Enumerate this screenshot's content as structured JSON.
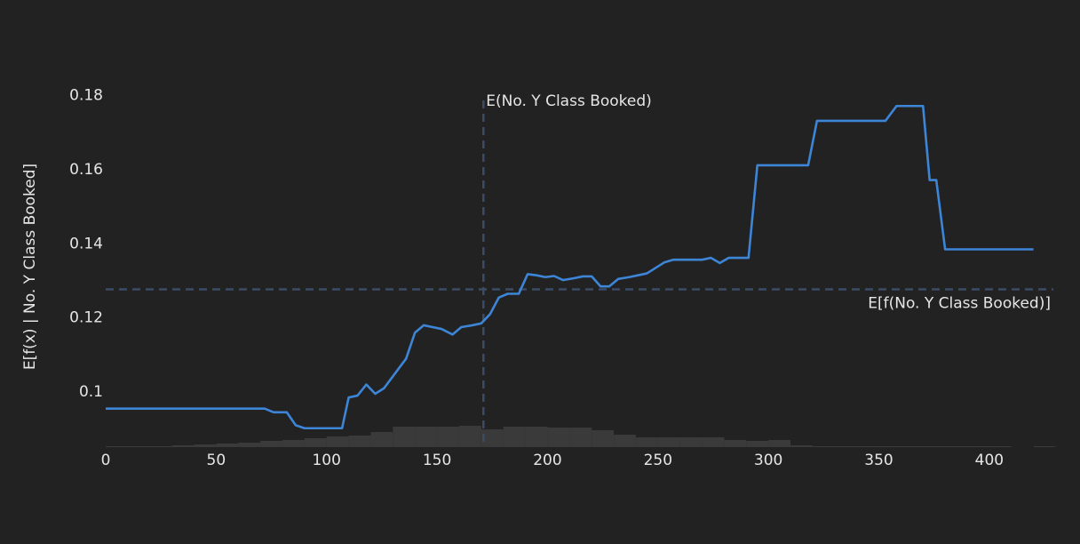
{
  "chart_data": {
    "type": "line",
    "ylabel": "E[f(x) | No. Y Class Booked]",
    "x": [
      0,
      72,
      76,
      82,
      86,
      90,
      107,
      110,
      114,
      118,
      122,
      126,
      131,
      136,
      140,
      144,
      148,
      152,
      157,
      161,
      166,
      170,
      174,
      178,
      182,
      187,
      191,
      195,
      199,
      203,
      207,
      212,
      216,
      220,
      224,
      228,
      232,
      237,
      241,
      245,
      249,
      253,
      257,
      262,
      266,
      270,
      274,
      278,
      282,
      287,
      291,
      295,
      299,
      304,
      308,
      318,
      322,
      330,
      353,
      358,
      370,
      373,
      376,
      380,
      420
    ],
    "series": [
      {
        "color": "#3d85d6",
        "values": [
          0.0955,
          0.0955,
          0.0945,
          0.0945,
          0.091,
          0.0902,
          0.0902,
          0.0985,
          0.099,
          0.102,
          0.0995,
          0.101,
          0.105,
          0.109,
          0.116,
          0.118,
          0.1175,
          0.117,
          0.1155,
          0.1175,
          0.118,
          0.1185,
          0.121,
          0.1255,
          0.1265,
          0.1265,
          0.1318,
          0.1315,
          0.131,
          0.1313,
          0.1302,
          0.1307,
          0.1312,
          0.1312,
          0.1285,
          0.1285,
          0.1305,
          0.131,
          0.1315,
          0.132,
          0.1335,
          0.135,
          0.1357,
          0.1357,
          0.1357,
          0.1357,
          0.1362,
          0.1348,
          0.1362,
          0.1362,
          0.1362,
          0.1612,
          0.1612,
          0.1612,
          0.1612,
          0.1612,
          0.1732,
          0.1732,
          0.1732,
          0.1772,
          0.1772,
          0.1572,
          0.1572,
          0.1385,
          0.1385
        ]
      }
    ],
    "vline": {
      "value": 171,
      "label": "E(No. Y Class Booked)",
      "color": "#3b4b68"
    },
    "hline": {
      "value": 0.1277,
      "label": "E[f(No. Y Class Booked)]",
      "color": "#3b4b68"
    },
    "histogram": {
      "color": "#3a3a3a",
      "bins": [
        0,
        10,
        20,
        30,
        40,
        50,
        60,
        70,
        80,
        90,
        100,
        110,
        120,
        130,
        140,
        150,
        160,
        170,
        180,
        190,
        200,
        210,
        220,
        230,
        240,
        250,
        260,
        270,
        280,
        290,
        300,
        310,
        320,
        330,
        340,
        350,
        360,
        370,
        380,
        390,
        400,
        410,
        420,
        430
      ],
      "counts": [
        1,
        1,
        1,
        2,
        3,
        4,
        5,
        7,
        8,
        10,
        12,
        13,
        17,
        23,
        23,
        23,
        24,
        20,
        23,
        23,
        22,
        22,
        19,
        14,
        11,
        11,
        11,
        11,
        8,
        7,
        8,
        2,
        1,
        1,
        1,
        1,
        1,
        1,
        1,
        1,
        1,
        0,
        1
      ]
    },
    "xlim": [
      0,
      429
    ],
    "xticks": [
      0,
      50,
      100,
      150,
      200,
      250,
      300,
      350,
      400
    ],
    "ylim": [
      0.0851,
      0.1835
    ],
    "yticks": [
      0.1,
      0.12,
      0.14,
      0.16,
      0.18
    ]
  }
}
